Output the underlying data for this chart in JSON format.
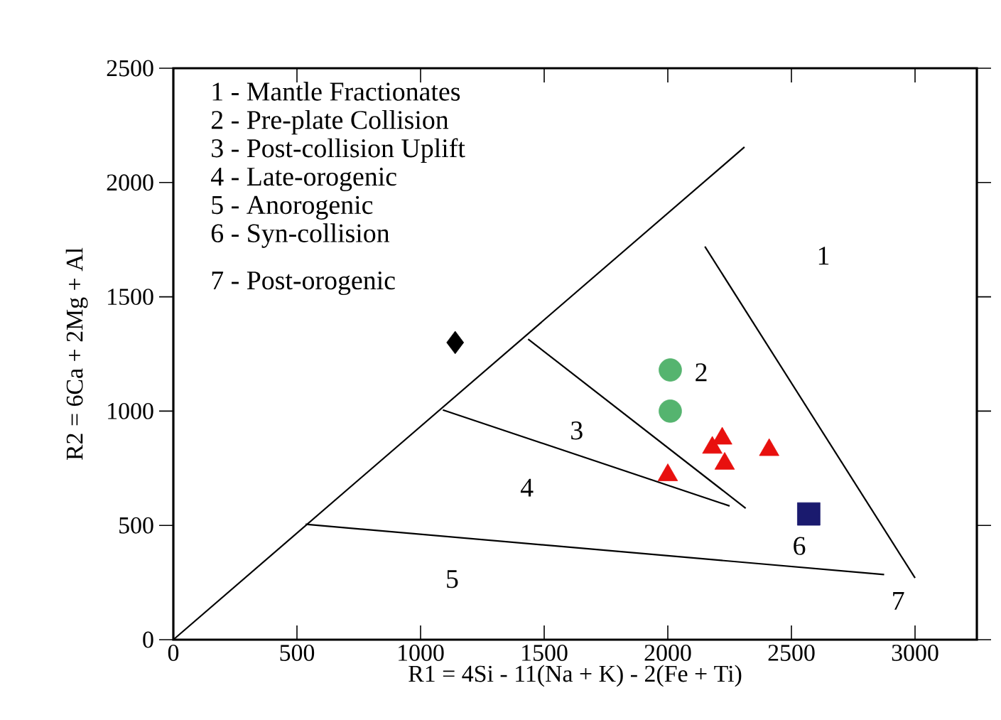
{
  "chart_data": {
    "type": "scatter",
    "xlabel": "R1 = 4Si - 11(Na + K) - 2(Fe + Ti)",
    "ylabel": "R2 = 6Ca + 2Mg + Al",
    "xlim": [
      0,
      3250
    ],
    "ylim": [
      0,
      2500
    ],
    "xticks": [
      0,
      500,
      1000,
      1500,
      2000,
      2500,
      3000
    ],
    "yticks": [
      0,
      500,
      1000,
      1500,
      2000,
      2500
    ],
    "grid": false,
    "series": [
      {
        "type": "line",
        "color": "#000000",
        "marker": "none",
        "x": [
          0,
          2310
        ],
        "values": [
          0,
          2155
        ]
      },
      {
        "type": "line",
        "color": "#000000",
        "marker": "none",
        "x": [
          2150,
          3000
        ],
        "values": [
          1720,
          270
        ]
      },
      {
        "type": "line",
        "color": "#000000",
        "marker": "none",
        "x": [
          1435,
          2315
        ],
        "values": [
          1315,
          575
        ]
      },
      {
        "type": "line",
        "color": "#000000",
        "marker": "none",
        "x": [
          1090,
          2250
        ],
        "values": [
          1005,
          585
        ]
      },
      {
        "type": "line",
        "color": "#000000",
        "marker": "none",
        "x": [
          535,
          2875
        ],
        "values": [
          505,
          285
        ]
      },
      {
        "color": "#000000",
        "marker": "diamond",
        "x": [
          1140
        ],
        "values": [
          1300
        ]
      },
      {
        "color": "#55b46f",
        "marker": "circle",
        "x": [
          2010,
          2010
        ],
        "values": [
          1180,
          1000
        ]
      },
      {
        "color": "#e8100e",
        "marker": "triangle",
        "x": [
          2000,
          2180,
          2220,
          2230,
          2410
        ],
        "values": [
          720,
          840,
          880,
          770,
          830
        ]
      },
      {
        "color": "#1a1a6e",
        "marker": "square",
        "x": [
          2570
        ],
        "values": [
          550
        ]
      }
    ],
    "annotations": [
      "1 - Mantle Fractionates",
      "2 - Pre-plate Collision",
      "3 - Post-collision Uplift",
      "4 - Late-orogenic",
      "5 - Anorogenic",
      "6 - Syn-collision",
      "7 - Post-orogenic",
      "1",
      "2",
      "3",
      "4",
      "5",
      "6",
      "7"
    ]
  }
}
